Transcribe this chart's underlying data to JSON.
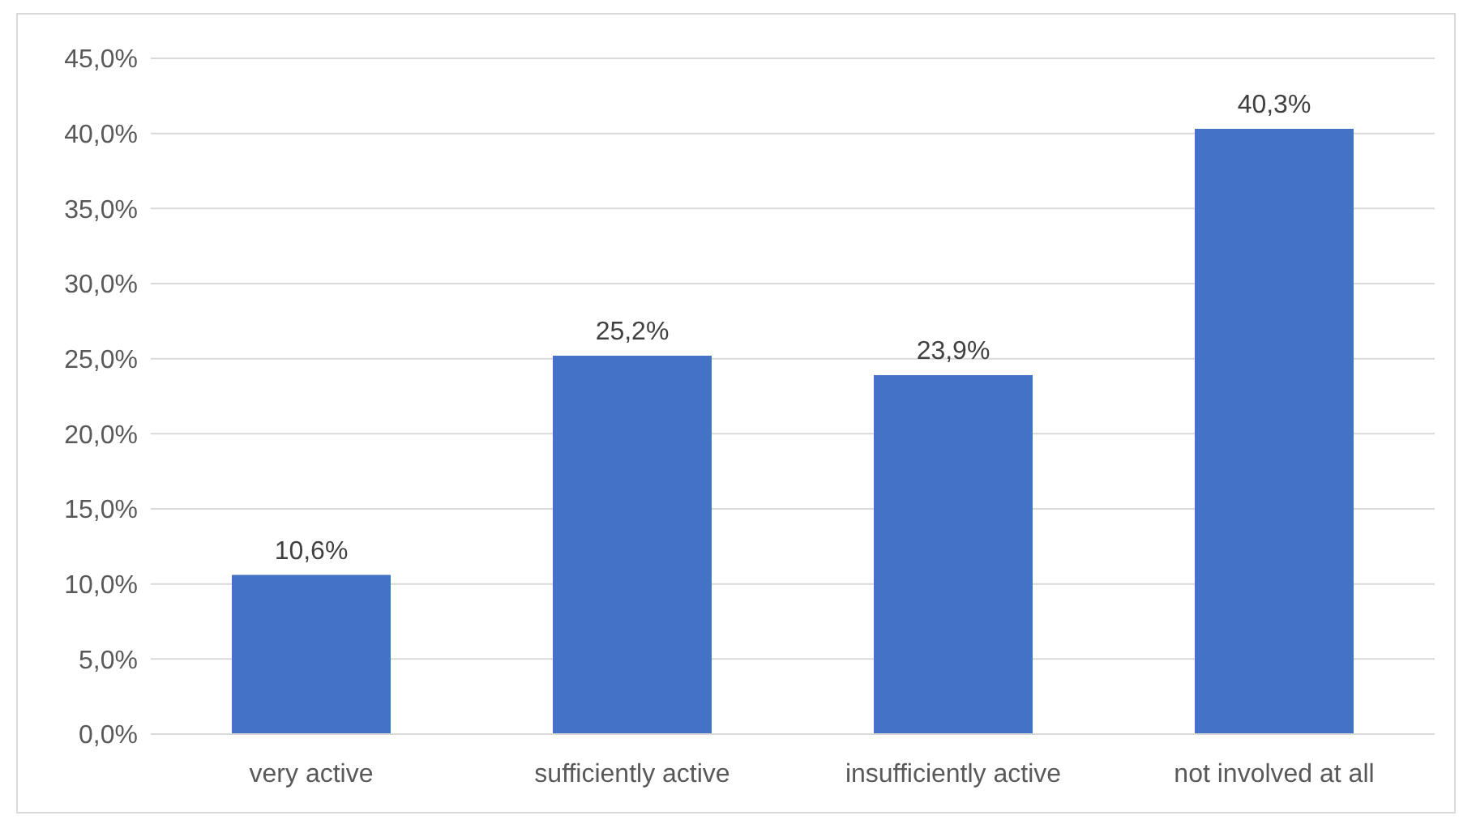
{
  "chart_data": {
    "type": "bar",
    "categories": [
      "very active",
      "sufficiently active",
      "insufficiently active",
      "not involved at all"
    ],
    "values": [
      10.6,
      25.2,
      23.9,
      40.3
    ],
    "value_labels": [
      "10,6%",
      "25,2%",
      "23,9%",
      "40,3%"
    ],
    "color": "#4472c4",
    "ylim": [
      0,
      45
    ],
    "yticks": [
      {
        "value": 0,
        "label": "0,0%"
      },
      {
        "value": 5,
        "label": "5,0%"
      },
      {
        "value": 10,
        "label": "10,0%"
      },
      {
        "value": 15,
        "label": "15,0%"
      },
      {
        "value": 20,
        "label": "20,0%"
      },
      {
        "value": 25,
        "label": "25,0%"
      },
      {
        "value": 30,
        "label": "30,0%"
      },
      {
        "value": 35,
        "label": "35,0%"
      },
      {
        "value": 40,
        "label": "40,0%"
      },
      {
        "value": 45,
        "label": "45,0%"
      }
    ],
    "grid": "y"
  }
}
